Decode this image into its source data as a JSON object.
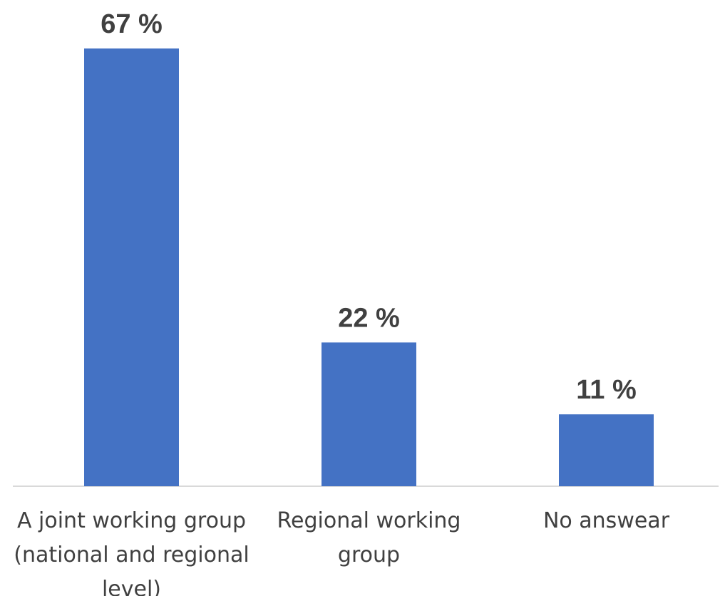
{
  "chart_data": {
    "type": "bar",
    "categories": [
      [
        "A joint working group",
        "(national and regional",
        "level)"
      ],
      [
        "Regional working",
        "group"
      ],
      [
        "No answear"
      ]
    ],
    "values": [
      67,
      22,
      11
    ],
    "data_labels": [
      "67 %",
      "22 %",
      "11 %"
    ],
    "title": "",
    "xlabel": "",
    "ylabel": "",
    "ylim": [
      0,
      67
    ],
    "grid": false,
    "legend": "none",
    "colors": {
      "bar": "#4472C4",
      "axis": "#D9D9D9",
      "text": "#404040"
    }
  }
}
